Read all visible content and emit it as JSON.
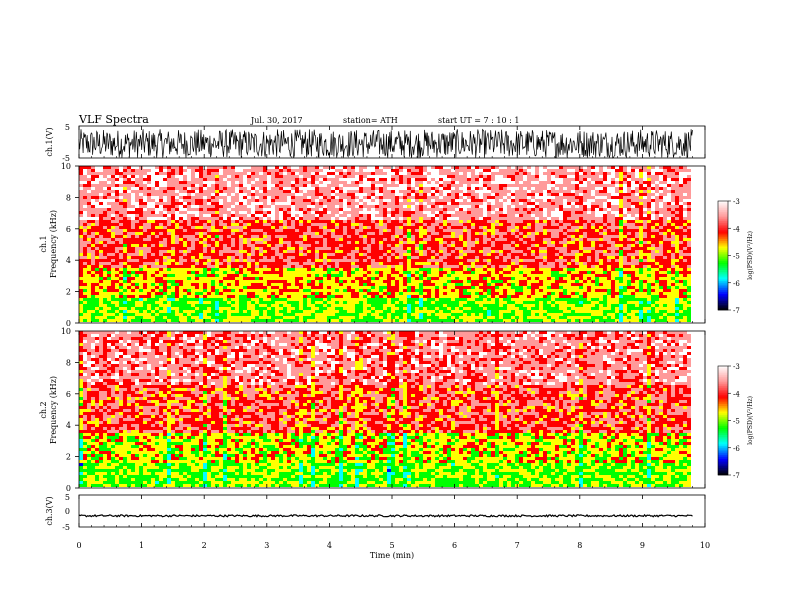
{
  "header": {
    "title": "VLF  Spectra",
    "date": "Jul. 30, 2017",
    "station": "station= ATH",
    "start": "start  UT  =    7  : 10 : 1"
  },
  "colors": {
    "axis": "#000000",
    "trace": "#000000",
    "colormap": [
      "#ffffff",
      "#ff9a9a",
      "#ff0000",
      "#ffff00",
      "#00ff00",
      "#00ffff",
      "#0000ff",
      "#000000"
    ]
  },
  "chart_data": [
    {
      "type": "line",
      "panel": "ch1-waveform",
      "ylabel": "ch.1(V)",
      "ylim": [
        -5,
        5
      ],
      "yticks": [
        "5",
        "-5"
      ],
      "x_range": [
        0,
        9.8
      ],
      "trace": {
        "center": -0.5,
        "amplitude": 4.5,
        "style": "dense oscillation"
      }
    },
    {
      "type": "heatmap",
      "panel": "ch1-spectrogram",
      "ylabel": "Frequency  (kHz)",
      "channel_label": "ch.1",
      "ylim": [
        0,
        10
      ],
      "yticks": [
        "0",
        "2",
        "4",
        "6",
        "8",
        "10"
      ],
      "x_range": [
        0,
        9.8
      ],
      "bands": [
        {
          "freq": [
            0,
            1.6
          ],
          "level": -5.0
        },
        {
          "freq": [
            1.6,
            3.5
          ],
          "level": -4.6
        },
        {
          "freq": [
            3.5,
            6.5
          ],
          "level": -4.0
        },
        {
          "freq": [
            6.5,
            10
          ],
          "level": -3.5
        }
      ],
      "colorbar": {
        "label": "log(PSD)(V²/Hz)",
        "range": [
          -7,
          -3
        ],
        "ticks": [
          "-3",
          "-4",
          "-5",
          "-6",
          "-7"
        ]
      }
    },
    {
      "type": "heatmap",
      "panel": "ch2-spectrogram",
      "ylabel": "Frequency  (kHz)",
      "channel_label": "ch.2",
      "ylim": [
        0,
        10
      ],
      "yticks": [
        "0",
        "2",
        "4",
        "6",
        "8",
        "10"
      ],
      "x_range": [
        0,
        9.8
      ],
      "bands": [
        {
          "freq": [
            0,
            1.6
          ],
          "level": -5.0
        },
        {
          "freq": [
            1.6,
            3.5
          ],
          "level": -4.7
        },
        {
          "freq": [
            3.5,
            6.5
          ],
          "level": -4.0
        },
        {
          "freq": [
            6.5,
            10
          ],
          "level": -3.6
        }
      ],
      "colorbar": {
        "label": "log(PSD)(V²/Hz)",
        "range": [
          -7,
          -3
        ],
        "ticks": [
          "-3",
          "-4",
          "-5",
          "-6",
          "-7"
        ]
      }
    },
    {
      "type": "line",
      "panel": "ch3-waveform",
      "ylabel": "ch.3(V)",
      "ylim": [
        -5,
        5
      ],
      "yticks": [
        "5",
        "0",
        "-5"
      ],
      "x_range": [
        0,
        9.8
      ],
      "trace": {
        "center": -1.5,
        "amplitude": 0.3,
        "style": "flat noisy"
      }
    }
  ],
  "xaxis": {
    "label": "Time  (min)",
    "ticks": [
      "0",
      "1",
      "2",
      "3",
      "4",
      "5",
      "6",
      "7",
      "8",
      "9",
      "10"
    ],
    "xlim": [
      0,
      10
    ]
  }
}
